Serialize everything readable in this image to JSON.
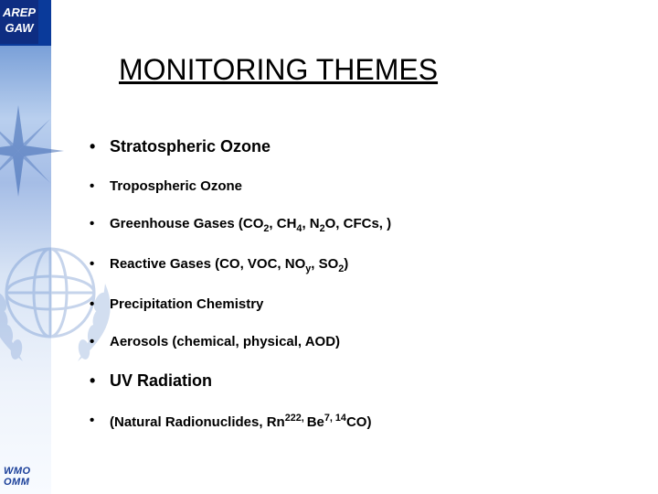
{
  "badge": {
    "line1": "AREP",
    "line2": "GAW"
  },
  "footer": {
    "line1": "WMO",
    "line2": "OMM"
  },
  "title": "MONITORING THEMES",
  "bullets": [
    {
      "size": "lg",
      "parts": [
        {
          "t": "Stratospheric Ozone"
        }
      ]
    },
    {
      "size": "md",
      "parts": [
        {
          "t": "Tropospheric Ozone"
        }
      ]
    },
    {
      "size": "md",
      "parts": [
        {
          "t": "Greenhouse Gases (CO"
        },
        {
          "t": "2",
          "sub": true
        },
        {
          "t": ", CH"
        },
        {
          "t": "4",
          "sub": true
        },
        {
          "t": ", N"
        },
        {
          "t": "2",
          "sub": true
        },
        {
          "t": "O, CFCs, )"
        }
      ]
    },
    {
      "size": "md",
      "parts": [
        {
          "t": "Reactive Gases (CO, VOC, NO"
        },
        {
          "t": "y",
          "sub": true
        },
        {
          "t": ", SO"
        },
        {
          "t": "2",
          "sub": true
        },
        {
          "t": ")"
        }
      ]
    },
    {
      "size": "md",
      "parts": [
        {
          "t": "Precipitation Chemistry"
        }
      ]
    },
    {
      "size": "md",
      "parts": [
        {
          "t": "Aerosols (chemical, physical, AOD)"
        }
      ]
    },
    {
      "size": "lg",
      "parts": [
        {
          "t": "UV Radiation"
        }
      ]
    },
    {
      "size": "md",
      "parts": [
        {
          "t": "(Natural Radionuclides, Rn"
        },
        {
          "t": "222, ",
          "sup": true
        },
        {
          "t": "Be"
        },
        {
          "t": "7, ",
          "sup": true
        },
        {
          "t": "14",
          "sup": true
        },
        {
          "t": "CO)"
        }
      ]
    }
  ],
  "colors": {
    "title": "#000000",
    "text": "#000000",
    "brand": "#1a3f99",
    "band_top": "#0a3a9a",
    "band_mid": "#b9cfee",
    "background": "#ffffff"
  }
}
